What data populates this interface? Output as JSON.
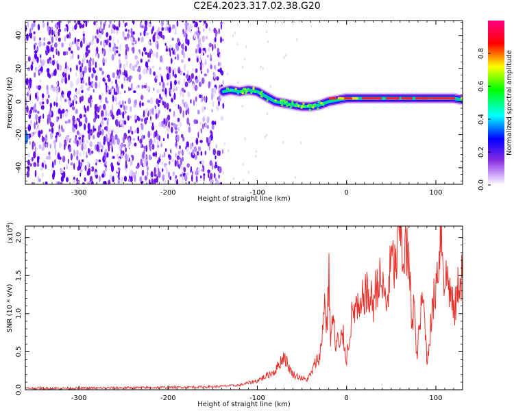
{
  "figure_title": "C2E4.2023.317.02.38.G20",
  "chart_data": [
    {
      "type": "heatmap",
      "title": "",
      "xlabel": "Height of straight line (km)",
      "ylabel": "Frequency (Hz)",
      "xlim": [
        -360,
        130
      ],
      "ylim": [
        -50,
        49
      ],
      "xticks": [
        -300,
        -200,
        -100,
        0,
        100
      ],
      "yticks": [
        -40,
        -20,
        0,
        20,
        40
      ],
      "colorbar": {
        "label": "Normalized spectral amplitude",
        "range": [
          0,
          1
        ],
        "ticks": [
          "0.0",
          "0.2",
          "0.4",
          "0.6",
          "0.8"
        ],
        "colors": [
          "#ffffff",
          "#8a2be2",
          "#0000ff",
          "#00ffff",
          "#00ff00",
          "#ffff00",
          "#ff0000",
          "#ff0080"
        ]
      },
      "noise_region": {
        "x_range": [
          -360,
          -138
        ],
        "amplitude": "low (purple speckle)"
      },
      "signal_track": {
        "x": [
          -138,
          -130,
          -120,
          -110,
          -100,
          -90,
          -80,
          -70,
          -60,
          -50,
          -40,
          -30,
          -20,
          -10,
          0,
          20,
          40,
          60,
          80,
          100,
          120,
          130
        ],
        "frequency": [
          6,
          7,
          6,
          7,
          6,
          3,
          0,
          -1,
          -2,
          -3,
          -3,
          -2,
          0,
          1,
          2,
          2,
          2,
          2,
          2,
          2,
          2,
          1
        ]
      }
    },
    {
      "type": "line",
      "title": "",
      "xlabel": "Height of straight line (km)",
      "ylabel": "SNR (10 * v/v)",
      "scale_label": "(x10",
      "scale_exponent": "4",
      "scale_suffix": ")",
      "xlim": [
        -360,
        130
      ],
      "ylim": [
        0,
        21500
      ],
      "xticks": [
        -300,
        -200,
        -100,
        0,
        100
      ],
      "yticks": [
        "0.0",
        "0.5",
        "1.0",
        "1.5",
        "2.0"
      ],
      "series": [
        {
          "color": "#e8302a",
          "x": [
            -360,
            -300,
            -200,
            -150,
            -120,
            -110,
            -100,
            -90,
            -80,
            -70,
            -65,
            -60,
            -55,
            -50,
            -45,
            -40,
            -35,
            -30,
            -28,
            -25,
            -22,
            -20,
            -18,
            -15,
            -12,
            -10,
            -8,
            -5,
            -2,
            0,
            5,
            10,
            15,
            20,
            25,
            30,
            35,
            40,
            45,
            50,
            55,
            58,
            60,
            63,
            66,
            70,
            73,
            76,
            78,
            80,
            82,
            85,
            88,
            90,
            93,
            96,
            100,
            103,
            106,
            110,
            113,
            116,
            120,
            123,
            126,
            130
          ],
          "y": [
            200,
            200,
            300,
            400,
            600,
            900,
            1200,
            1800,
            2500,
            4500,
            3000,
            2000,
            1800,
            1500,
            1300,
            2000,
            3500,
            4500,
            6000,
            12000,
            8000,
            15500,
            7000,
            9500,
            5000,
            7500,
            4500,
            8000,
            5500,
            4000,
            9000,
            11000,
            9500,
            13000,
            12000,
            11500,
            14500,
            13500,
            11000,
            17000,
            16000,
            19000,
            21500,
            17500,
            18500,
            16000,
            9000,
            12000,
            4000,
            6000,
            8500,
            12000,
            9000,
            3500,
            7000,
            10000,
            14000,
            17000,
            21500,
            14000,
            15000,
            13000,
            10000,
            11500,
            14500,
            15500
          ]
        }
      ]
    }
  ]
}
